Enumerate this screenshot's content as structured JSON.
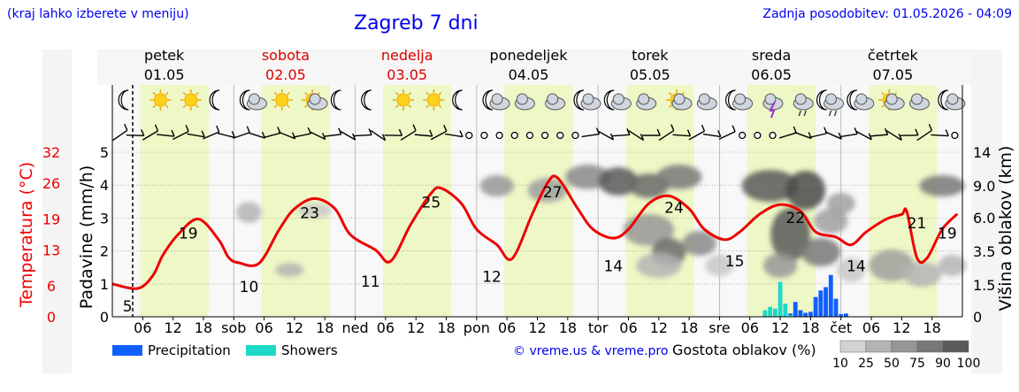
{
  "header": {
    "region_note": "(kraj lahko izberete v meniju)",
    "title": "Zagreb 7 dni",
    "updated": "Zadnja posodobitev: 01.05.2026 - 04:09"
  },
  "days": [
    {
      "name": "petek",
      "date": "01.05",
      "color": "#000000"
    },
    {
      "name": "sobota",
      "date": "02.05",
      "color": "#dd0000"
    },
    {
      "name": "nedelja",
      "date": "03.05",
      "color": "#dd0000"
    },
    {
      "name": "ponedeljek",
      "date": "04.05",
      "color": "#000000"
    },
    {
      "name": "torek",
      "date": "05.05",
      "color": "#000000"
    },
    {
      "name": "sreda",
      "date": "06.05",
      "color": "#000000"
    },
    {
      "name": "četrtek",
      "date": "07.05",
      "color": "#000000"
    }
  ],
  "weather_icons": [
    "moon-icon",
    "sun-icon",
    "sun-icon",
    "moon-icon",
    "moon-cloud-icon",
    "sun-icon",
    "sun-cloud-icon",
    "moon-icon",
    "moon-icon",
    "sun-icon",
    "sun-icon",
    "moon-icon",
    "moon-cloud-icon",
    "cloud-icon",
    "cloud-icon",
    "moon-cloud-icon",
    "moon-cloud-icon",
    "cloud-icon",
    "sun-cloud-icon",
    "cloud-icon",
    "moon-cloud-icon",
    "thunder-icon",
    "rain-cloud-icon",
    "moon-rain-icon",
    "moon-cloud-icon",
    "sun-cloud-icon",
    "cloud-icon",
    "moon-cloud-icon"
  ],
  "chart_data": {
    "type": "line",
    "x_unit": "hour since 01.05 00:00",
    "x_ticks": [
      {
        "h": 6,
        "label": "06"
      },
      {
        "h": 12,
        "label": "12"
      },
      {
        "h": 18,
        "label": "18"
      },
      {
        "h": 24,
        "label": "sob"
      },
      {
        "h": 30,
        "label": "06"
      },
      {
        "h": 36,
        "label": "12"
      },
      {
        "h": 42,
        "label": "18"
      },
      {
        "h": 48,
        "label": "ned"
      },
      {
        "h": 54,
        "label": "06"
      },
      {
        "h": 60,
        "label": "12"
      },
      {
        "h": 66,
        "label": "18"
      },
      {
        "h": 72,
        "label": "pon"
      },
      {
        "h": 78,
        "label": "06"
      },
      {
        "h": 84,
        "label": "12"
      },
      {
        "h": 90,
        "label": "18"
      },
      {
        "h": 96,
        "label": "tor"
      },
      {
        "h": 102,
        "label": "06"
      },
      {
        "h": 108,
        "label": "12"
      },
      {
        "h": 114,
        "label": "18"
      },
      {
        "h": 120,
        "label": "sre"
      },
      {
        "h": 126,
        "label": "06"
      },
      {
        "h": 132,
        "label": "12"
      },
      {
        "h": 138,
        "label": "18"
      },
      {
        "h": 144,
        "label": "čet"
      },
      {
        "h": 150,
        "label": "06"
      },
      {
        "h": 156,
        "label": "12"
      },
      {
        "h": 162,
        "label": "18"
      }
    ],
    "left_axis": {
      "label": "Padavine (mm/h)",
      "ticks": [
        0,
        1,
        2,
        3,
        4,
        5
      ],
      "ylim": [
        0,
        5
      ]
    },
    "temperature_axis": {
      "label": "Temperatura (°C)",
      "ticks": [
        0,
        6,
        13,
        19,
        26,
        32
      ],
      "ylim": [
        0,
        32
      ]
    },
    "right_axis": {
      "label": "Višina oblakov (km)",
      "ticks": [
        0,
        1.5,
        3.5,
        6.0,
        9.0,
        14.0
      ],
      "tick_labels": [
        "0",
        "1.5",
        "3.5",
        "6.0",
        "9.0",
        "14"
      ]
    },
    "series": [
      {
        "name": "Temperatura",
        "color": "#ee0000",
        "points": [
          [
            0,
            6.4
          ],
          [
            5,
            5.5
          ],
          [
            8,
            8
          ],
          [
            10,
            12
          ],
          [
            13,
            16
          ],
          [
            17,
            19
          ],
          [
            21,
            15
          ],
          [
            23,
            11.5
          ],
          [
            25,
            10.5
          ],
          [
            29,
            10.4
          ],
          [
            33,
            17
          ],
          [
            36,
            21
          ],
          [
            40,
            23
          ],
          [
            44,
            21
          ],
          [
            47,
            16
          ],
          [
            52,
            13
          ],
          [
            55,
            10.8
          ],
          [
            59,
            18
          ],
          [
            63,
            24
          ],
          [
            65,
            25
          ],
          [
            69,
            22
          ],
          [
            72,
            17
          ],
          [
            76,
            14
          ],
          [
            79,
            11.3
          ],
          [
            83,
            20
          ],
          [
            86,
            26
          ],
          [
            88,
            27
          ],
          [
            92,
            21
          ],
          [
            95,
            17
          ],
          [
            99,
            15.3
          ],
          [
            102,
            17
          ],
          [
            106,
            22
          ],
          [
            110,
            23.5
          ],
          [
            114,
            21
          ],
          [
            117,
            17
          ],
          [
            121,
            15
          ],
          [
            124,
            16.5
          ],
          [
            128,
            20
          ],
          [
            132,
            21.8
          ],
          [
            136,
            20.5
          ],
          [
            139,
            16.5
          ],
          [
            143,
            15.5
          ],
          [
            146,
            14
          ],
          [
            149,
            16.5
          ],
          [
            153,
            19
          ],
          [
            156,
            19.9
          ],
          [
            157,
            20.5
          ],
          [
            159,
            11.5
          ],
          [
            161,
            11.4
          ],
          [
            164,
            17
          ],
          [
            167,
            20
          ]
        ]
      },
      {
        "name": "Precipitation",
        "color": "#1060ff",
        "bars": [
          [
            134,
            0.1
          ],
          [
            135,
            0.45
          ],
          [
            136,
            0.2
          ],
          [
            137,
            0.12
          ],
          [
            138,
            0.15
          ],
          [
            139,
            0.6
          ],
          [
            140,
            0.8
          ],
          [
            141,
            0.9
          ],
          [
            142,
            1.27
          ],
          [
            143,
            0.55
          ],
          [
            144,
            0.08
          ],
          [
            145,
            0.1
          ]
        ]
      },
      {
        "name": "Showers",
        "color": "#20d8c8",
        "bars": [
          [
            129,
            0.2
          ],
          [
            130,
            0.3
          ],
          [
            131,
            0.25
          ],
          [
            132,
            1.06
          ],
          [
            133,
            0.4
          ],
          [
            134,
            0.05
          ]
        ]
      }
    ],
    "temp_labels": [
      {
        "h": 3,
        "value": "5"
      },
      {
        "h": 15,
        "value": "19"
      },
      {
        "h": 27,
        "value": "10"
      },
      {
        "h": 39,
        "value": "23"
      },
      {
        "h": 51,
        "value": "11"
      },
      {
        "h": 63,
        "value": "25"
      },
      {
        "h": 75,
        "value": "12"
      },
      {
        "h": 87,
        "value": "27"
      },
      {
        "h": 99,
        "value": "14"
      },
      {
        "h": 111,
        "value": "24"
      },
      {
        "h": 123,
        "value": "15"
      },
      {
        "h": 135,
        "value": "22"
      },
      {
        "h": 147,
        "value": "14"
      },
      {
        "h": 159,
        "value": "21"
      },
      {
        "h": 165,
        "value": "19"
      }
    ],
    "cloud_legend": {
      "title": "Gostota oblakov (%)",
      "ticks": [
        "10",
        "25",
        "50",
        "75",
        "90",
        "100"
      ],
      "colors": [
        "#d2d2d2",
        "#b4b4b4",
        "#969696",
        "#787878",
        "#5a5a5a"
      ]
    },
    "precip_legend": [
      {
        "label": "Precipitation",
        "color": "#1060ff"
      },
      {
        "label": "Showers",
        "color": "#20d8c8"
      }
    ],
    "credit": "© vreme.us & vreme.pro",
    "grid": true,
    "legend_position": "bottom"
  }
}
